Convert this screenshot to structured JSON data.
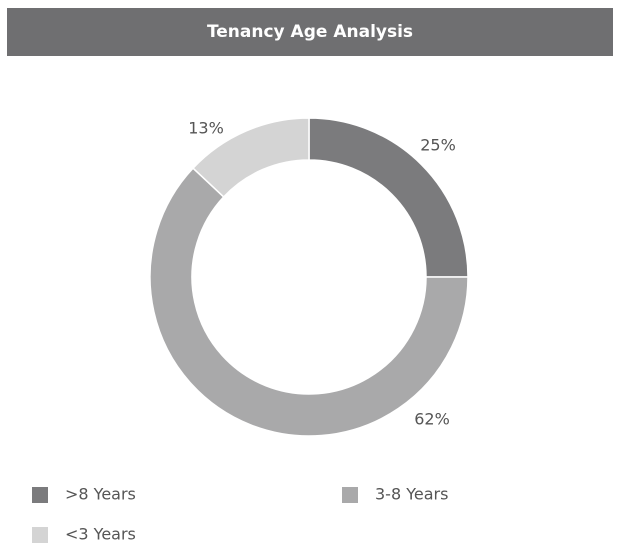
{
  "chart_data": {
    "type": "donut",
    "title": "Tenancy Age Analysis",
    "categories": [
      ">8 Years",
      "3-8 Years",
      "<3 Years"
    ],
    "values": [
      25,
      62,
      13
    ],
    "value_labels": [
      "25%",
      "62%",
      "13%"
    ],
    "colors": [
      "#7b7b7d",
      "#a9a9aa",
      "#d4d4d4"
    ]
  }
}
